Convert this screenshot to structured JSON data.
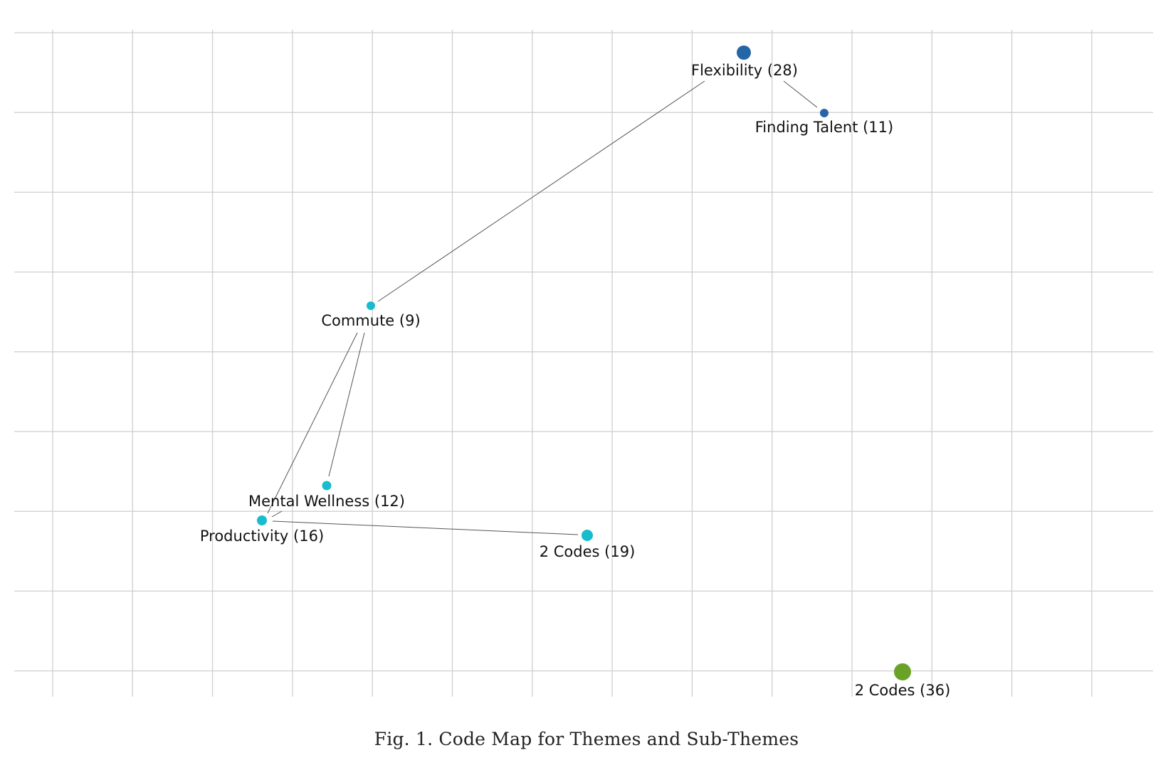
{
  "colors": {
    "theme_blue": "#2566a6",
    "theme_cyan": "#17bccd",
    "theme_green": "#6aa228",
    "grid": "#cfcfcf",
    "edge": "#555555"
  },
  "nodes": [
    {
      "id": "flexibility",
      "label": "Flexibility (28)",
      "color": "#2566a6"
    },
    {
      "id": "finding-talent",
      "label": "Finding Talent (11)",
      "color": "#2566a6"
    },
    {
      "id": "commute",
      "label": "Commute (9)",
      "color": "#17bccd"
    },
    {
      "id": "mental-wellness",
      "label": "Mental Wellness (12)",
      "color": "#17bccd"
    },
    {
      "id": "productivity",
      "label": "Productivity (16)",
      "color": "#17bccd"
    },
    {
      "id": "two-codes-19",
      "label": "2 Codes (19)",
      "color": "#17bccd"
    },
    {
      "id": "two-codes-36",
      "label": "2 Codes (36)",
      "color": "#6aa228"
    }
  ],
  "edges": [
    {
      "from": "flexibility",
      "to": "finding-talent"
    },
    {
      "from": "flexibility",
      "to": "commute"
    },
    {
      "from": "commute",
      "to": "mental-wellness"
    },
    {
      "from": "commute",
      "to": "productivity"
    },
    {
      "from": "productivity",
      "to": "mental-wellness"
    },
    {
      "from": "productivity",
      "to": "two-codes-19"
    }
  ],
  "caption": "Fig. 1.  Code Map for Themes and Sub-Themes"
}
